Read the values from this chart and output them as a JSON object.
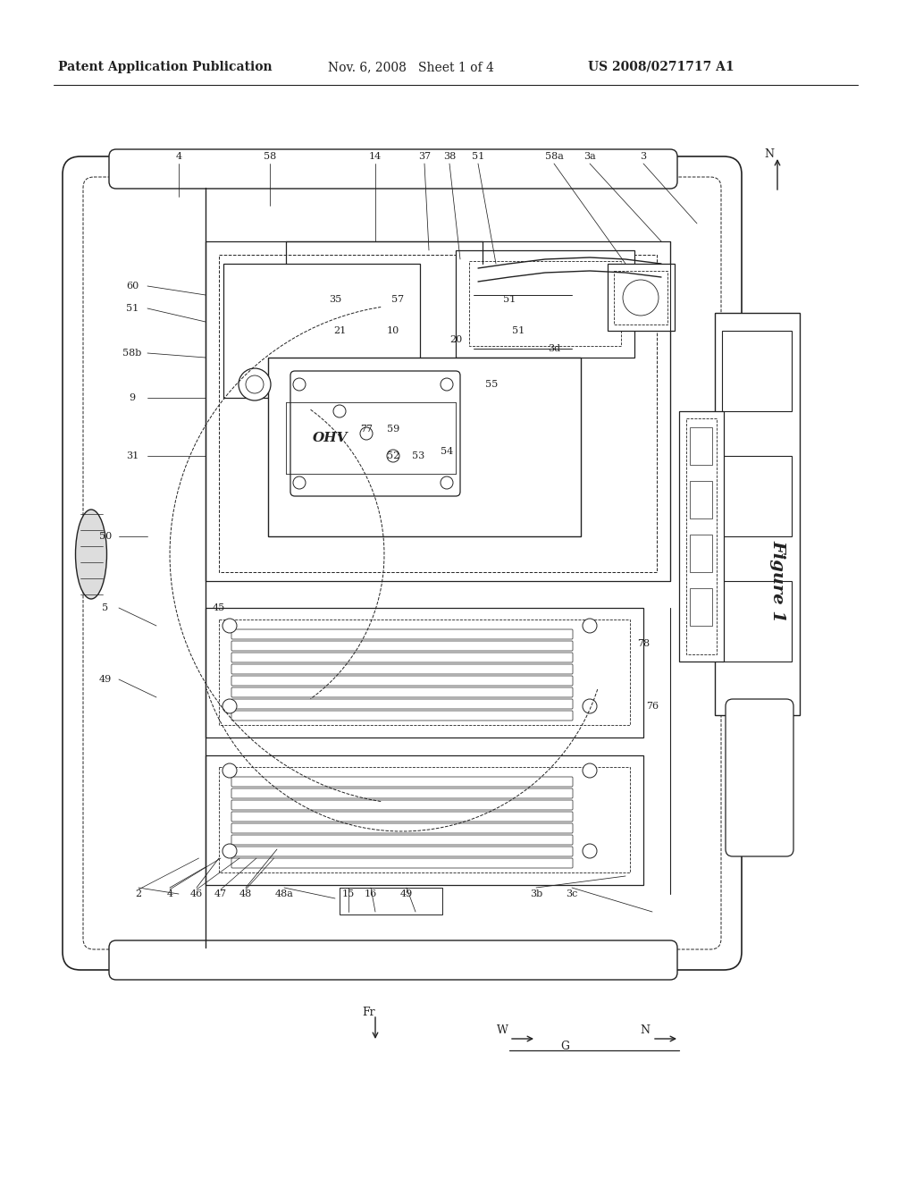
{
  "bg_color": "#ffffff",
  "fig_width": 10.24,
  "fig_height": 13.2,
  "header_text": "Patent Application Publication",
  "header_date": "Nov. 6, 2008   Sheet 1 of 4",
  "header_patent": "US 2008/0271717 A1",
  "figure_label": "Figure 1",
  "title_fontsize": 10,
  "label_fontsize": 8.5,
  "line_color": "#222222",
  "line_width": 0.8
}
